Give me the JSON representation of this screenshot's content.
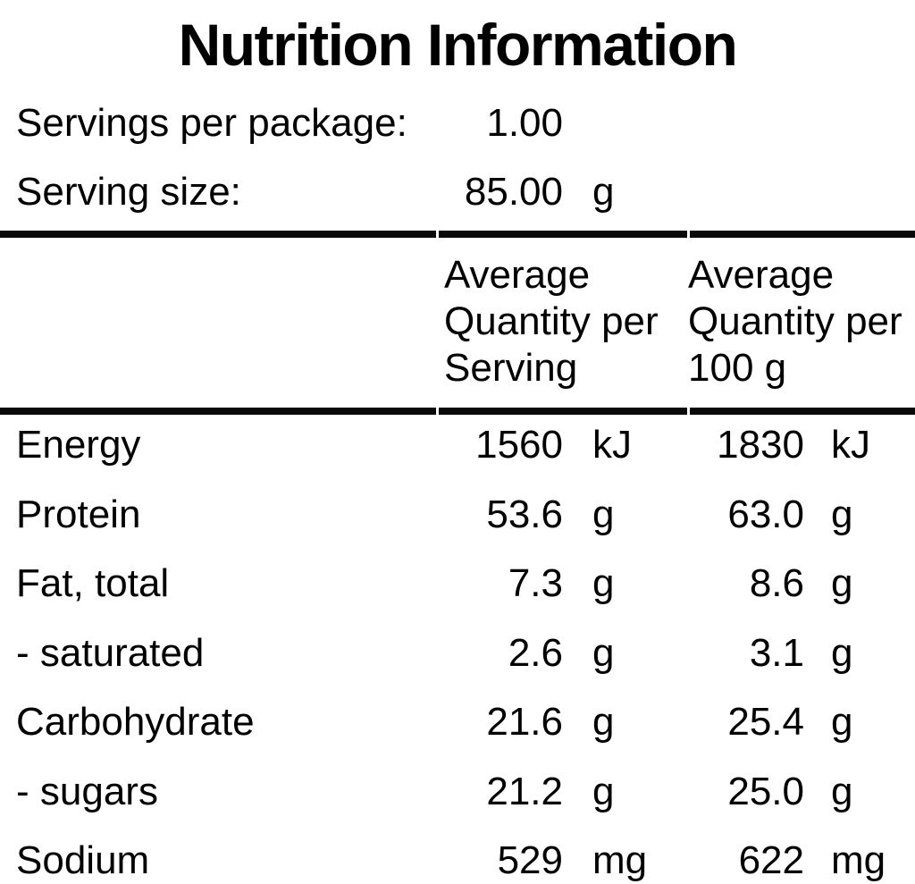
{
  "title": "Nutrition Information",
  "serving_info": {
    "servings_per_package_label": "Servings per package:",
    "servings_per_package_value": "1.00",
    "serving_size_label": "Serving size:",
    "serving_size_value": "85.00",
    "serving_size_unit": "g"
  },
  "table": {
    "header": {
      "per_serving": [
        "Average",
        "Quantity per",
        "Serving"
      ],
      "per_100g": [
        "Average",
        "Quantity per",
        "100 g"
      ]
    },
    "rows": [
      {
        "label": "Energy",
        "per_serving": "1560",
        "per_serving_unit": "kJ",
        "per_100g": "1830",
        "per_100g_unit": "kJ"
      },
      {
        "label": "Protein",
        "per_serving": "53.6",
        "per_serving_unit": "g",
        "per_100g": "63.0",
        "per_100g_unit": "g"
      },
      {
        "label": "Fat, total",
        "per_serving": "7.3",
        "per_serving_unit": "g",
        "per_100g": "8.6",
        "per_100g_unit": "g"
      },
      {
        "label": "- saturated",
        "per_serving": "2.6",
        "per_serving_unit": "g",
        "per_100g": "3.1",
        "per_100g_unit": "g"
      },
      {
        "label": "Carbohydrate",
        "per_serving": "21.6",
        "per_serving_unit": "g",
        "per_100g": "25.4",
        "per_100g_unit": "g"
      },
      {
        "label": "- sugars",
        "per_serving": "21.2",
        "per_serving_unit": "g",
        "per_100g": "25.0",
        "per_100g_unit": "g"
      },
      {
        "label": "Sodium",
        "per_serving": "529",
        "per_serving_unit": "mg",
        "per_100g": "622",
        "per_100g_unit": "mg"
      }
    ]
  },
  "colors": {
    "background": "#ffffff",
    "text": "#000000",
    "rule": "#0a0a0a"
  }
}
